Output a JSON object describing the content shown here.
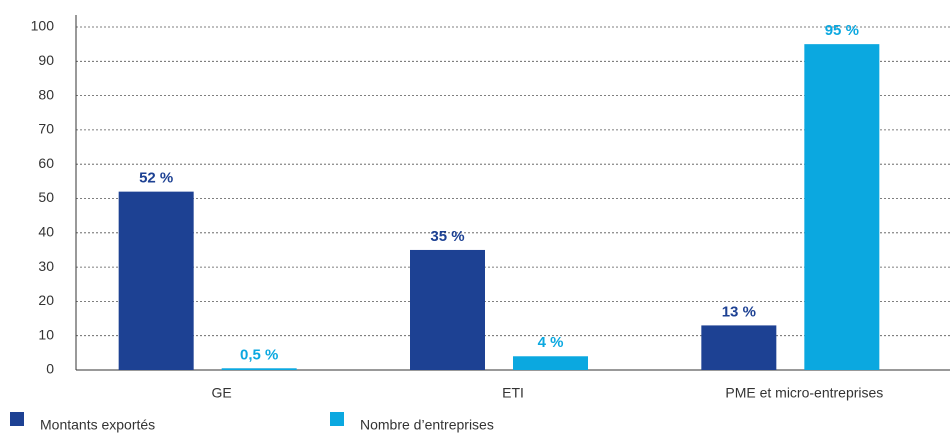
{
  "chart_data": {
    "type": "bar",
    "categories": [
      "GE",
      "ETI",
      "PME et micro-entreprises"
    ],
    "series": [
      {
        "name": "Montants exportés",
        "color": "#1d4193",
        "values": [
          52,
          35,
          13
        ],
        "value_labels": [
          "52 %",
          "35 %",
          "13 %"
        ]
      },
      {
        "name": "Nombre d’entreprises",
        "color": "#0ba8e0",
        "values": [
          0.5,
          4,
          95
        ],
        "value_labels": [
          "0,5 %",
          "4 %",
          "95 %"
        ]
      }
    ],
    "ylim": [
      0,
      100
    ],
    "yticks": [
      0,
      10,
      20,
      30,
      40,
      50,
      60,
      70,
      80,
      90,
      100
    ],
    "grid": true
  }
}
